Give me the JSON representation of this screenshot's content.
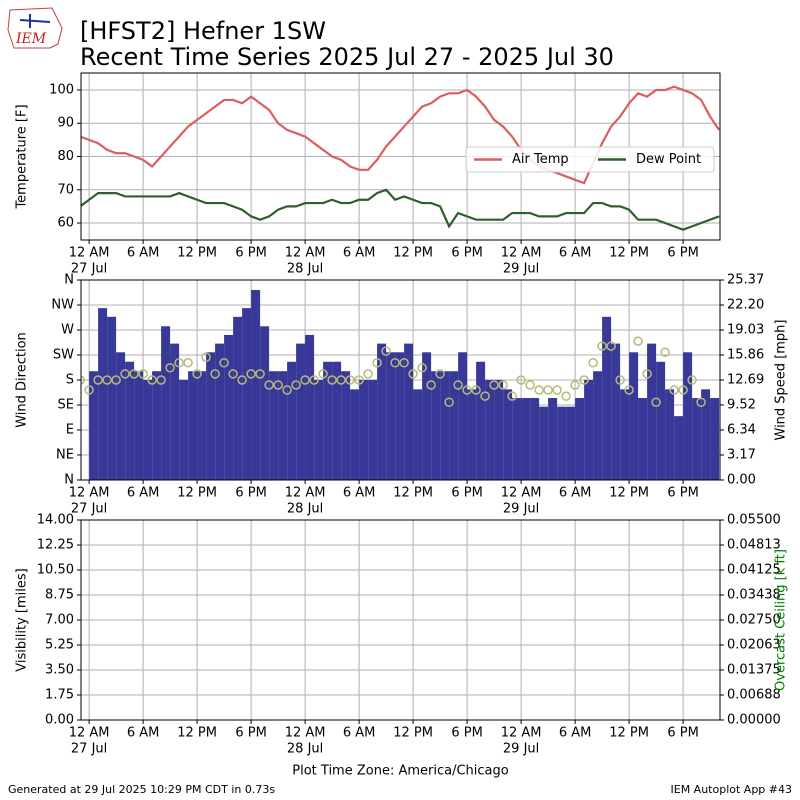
{
  "logo": "IEM",
  "title": "[HFST2] Hefner 1SW",
  "subtitle": "Recent Time Series 2025 Jul 27 - 2025 Jul 30",
  "footer_left": "Generated at 29 Jul 2025 10:29 PM CDT in 0.73s",
  "footer_right": "IEM Autoplot App #43",
  "chart_data": [
    {
      "type": "line",
      "ylabel": "Temperature [F]",
      "legend": "center right",
      "grid": true,
      "x": [
        "2025-07-26 23:00",
        "2025-07-27 00:00",
        "2025-07-27 01:00",
        "2025-07-27 02:00",
        "2025-07-27 03:00",
        "2025-07-27 04:00",
        "2025-07-27 05:00",
        "2025-07-27 06:00",
        "2025-07-27 07:00",
        "2025-07-27 08:00",
        "2025-07-27 09:00",
        "2025-07-27 10:00",
        "2025-07-27 11:00",
        "2025-07-27 12:00",
        "2025-07-27 13:00",
        "2025-07-27 14:00",
        "2025-07-27 15:00",
        "2025-07-27 16:00",
        "2025-07-27 17:00",
        "2025-07-27 18:00",
        "2025-07-27 19:00",
        "2025-07-27 20:00",
        "2025-07-27 21:00",
        "2025-07-27 22:00",
        "2025-07-27 23:00",
        "2025-07-28 00:00",
        "2025-07-28 01:00",
        "2025-07-28 02:00",
        "2025-07-28 03:00",
        "2025-07-28 04:00",
        "2025-07-28 05:00",
        "2025-07-28 06:00",
        "2025-07-28 07:00",
        "2025-07-28 08:00",
        "2025-07-28 09:00",
        "2025-07-28 10:00",
        "2025-07-28 11:00",
        "2025-07-28 12:00",
        "2025-07-28 13:00",
        "2025-07-28 14:00",
        "2025-07-28 15:00",
        "2025-07-28 16:00",
        "2025-07-28 17:00",
        "2025-07-28 18:00",
        "2025-07-28 19:00",
        "2025-07-28 20:00",
        "2025-07-28 21:00",
        "2025-07-28 22:00",
        "2025-07-28 23:00",
        "2025-07-29 00:00",
        "2025-07-29 01:00",
        "2025-07-29 02:00",
        "2025-07-29 03:00",
        "2025-07-29 04:00",
        "2025-07-29 05:00",
        "2025-07-29 06:00",
        "2025-07-29 07:00",
        "2025-07-29 08:00",
        "2025-07-29 09:00",
        "2025-07-29 10:00",
        "2025-07-29 11:00",
        "2025-07-29 12:00",
        "2025-07-29 13:00",
        "2025-07-29 14:00",
        "2025-07-29 15:00",
        "2025-07-29 16:00",
        "2025-07-29 17:00",
        "2025-07-29 18:00",
        "2025-07-29 19:00",
        "2025-07-29 20:00",
        "2025-07-29 21:00",
        "2025-07-29 22:00"
      ],
      "xlim": [
        "2025-07-26 23:06",
        "2025-07-29 22:06"
      ],
      "xticks": [
        {
          "value": "2025-07-27 00:00",
          "label": "12 AM",
          "date": "27 Jul"
        },
        {
          "value": "2025-07-27 06:00",
          "label": "6 AM"
        },
        {
          "value": "2025-07-27 12:00",
          "label": "12 PM"
        },
        {
          "value": "2025-07-27 18:00",
          "label": "6 PM"
        },
        {
          "value": "2025-07-28 00:00",
          "label": "12 AM",
          "date": "28 Jul"
        },
        {
          "value": "2025-07-28 06:00",
          "label": "6 AM"
        },
        {
          "value": "2025-07-28 12:00",
          "label": "12 PM"
        },
        {
          "value": "2025-07-28 18:00",
          "label": "6 PM"
        },
        {
          "value": "2025-07-29 00:00",
          "label": "12 AM",
          "date": "29 Jul"
        },
        {
          "value": "2025-07-29 06:00",
          "label": "6 AM"
        },
        {
          "value": "2025-07-29 12:00",
          "label": "12 PM"
        },
        {
          "value": "2025-07-29 18:00",
          "label": "6 PM"
        }
      ],
      "ylim": [
        54.9,
        105.1
      ],
      "yticks": [
        60,
        70,
        80,
        90,
        100
      ],
      "series": [
        {
          "name": "Air Temp",
          "type": "line",
          "color": "#d95f5f",
          "values": [
            86,
            85,
            84,
            82,
            81,
            81,
            80,
            79,
            77,
            80,
            83,
            86,
            89,
            91,
            93,
            95,
            97,
            97,
            96,
            98,
            96,
            94,
            90,
            88,
            87,
            86,
            84,
            82,
            80,
            79,
            77,
            76,
            76,
            79,
            83,
            86,
            89,
            92,
            95,
            96,
            98,
            99,
            99,
            100,
            98,
            95,
            91,
            89,
            86,
            82,
            79,
            77,
            76,
            75,
            74,
            73,
            72,
            78,
            84,
            89,
            92,
            96,
            99,
            98,
            100,
            100,
            101,
            100,
            99,
            97,
            92,
            88
          ]
        },
        {
          "name": "Dew Point",
          "type": "line",
          "color": "#2e5f2e",
          "values": [
            65,
            67,
            69,
            69,
            69,
            68,
            68,
            68,
            68,
            68,
            68,
            69,
            68,
            67,
            66,
            66,
            66,
            65,
            64,
            62,
            61,
            62,
            64,
            65,
            65,
            66,
            66,
            66,
            67,
            66,
            66,
            67,
            67,
            69,
            70,
            67,
            68,
            67,
            66,
            66,
            65,
            59,
            63,
            62,
            61,
            61,
            61,
            61,
            63,
            63,
            63,
            62,
            62,
            62,
            63,
            63,
            63,
            66,
            66,
            65,
            65,
            64,
            61,
            61,
            61,
            60,
            59,
            58,
            59,
            60,
            61,
            62
          ]
        }
      ]
    },
    {
      "type": "bar",
      "ylabel": "Wind Direction",
      "y2label": "Wind Speed [mph]",
      "grid": true,
      "x": [
        "2025-07-26 23:00",
        "2025-07-27 00:00",
        "2025-07-27 01:00",
        "2025-07-27 02:00",
        "2025-07-27 03:00",
        "2025-07-27 04:00",
        "2025-07-27 05:00",
        "2025-07-27 06:00",
        "2025-07-27 07:00",
        "2025-07-27 08:00",
        "2025-07-27 09:00",
        "2025-07-27 10:00",
        "2025-07-27 11:00",
        "2025-07-27 12:00",
        "2025-07-27 13:00",
        "2025-07-27 14:00",
        "2025-07-27 15:00",
        "2025-07-27 16:00",
        "2025-07-27 17:00",
        "2025-07-27 18:00",
        "2025-07-27 19:00",
        "2025-07-27 20:00",
        "2025-07-27 21:00",
        "2025-07-27 22:00",
        "2025-07-27 23:00",
        "2025-07-28 00:00",
        "2025-07-28 01:00",
        "2025-07-28 02:00",
        "2025-07-28 03:00",
        "2025-07-28 04:00",
        "2025-07-28 05:00",
        "2025-07-28 06:00",
        "2025-07-28 07:00",
        "2025-07-28 08:00",
        "2025-07-28 09:00",
        "2025-07-28 10:00",
        "2025-07-28 11:00",
        "2025-07-28 12:00",
        "2025-07-28 13:00",
        "2025-07-28 14:00",
        "2025-07-28 15:00",
        "2025-07-28 16:00",
        "2025-07-28 17:00",
        "2025-07-28 18:00",
        "2025-07-28 19:00",
        "2025-07-28 20:00",
        "2025-07-28 21:00",
        "2025-07-28 22:00",
        "2025-07-28 23:00",
        "2025-07-29 00:00",
        "2025-07-29 01:00",
        "2025-07-29 02:00",
        "2025-07-29 03:00",
        "2025-07-29 04:00",
        "2025-07-29 05:00",
        "2025-07-29 06:00",
        "2025-07-29 07:00",
        "2025-07-29 08:00",
        "2025-07-29 09:00",
        "2025-07-29 10:00",
        "2025-07-29 11:00",
        "2025-07-29 12:00",
        "2025-07-29 13:00",
        "2025-07-29 14:00",
        "2025-07-29 15:00",
        "2025-07-29 16:00",
        "2025-07-29 17:00",
        "2025-07-29 18:00",
        "2025-07-29 19:00",
        "2025-07-29 20:00",
        "2025-07-29 21:00",
        "2025-07-29 22:00"
      ],
      "xlim": [
        "2025-07-26 23:06",
        "2025-07-29 22:06"
      ],
      "xticks": [
        {
          "value": "2025-07-27 00:00",
          "label": "12 AM",
          "date": "27 Jul"
        },
        {
          "value": "2025-07-27 06:00",
          "label": "6 AM"
        },
        {
          "value": "2025-07-27 12:00",
          "label": "12 PM"
        },
        {
          "value": "2025-07-27 18:00",
          "label": "6 PM"
        },
        {
          "value": "2025-07-28 00:00",
          "label": "12 AM",
          "date": "28 Jul"
        },
        {
          "value": "2025-07-28 06:00",
          "label": "6 AM"
        },
        {
          "value": "2025-07-28 12:00",
          "label": "12 PM"
        },
        {
          "value": "2025-07-28 18:00",
          "label": "6 PM"
        },
        {
          "value": "2025-07-29 00:00",
          "label": "12 AM",
          "date": "29 Jul"
        },
        {
          "value": "2025-07-29 06:00",
          "label": "6 AM"
        },
        {
          "value": "2025-07-29 12:00",
          "label": "12 PM"
        },
        {
          "value": "2025-07-29 18:00",
          "label": "6 PM"
        }
      ],
      "ylim": [
        0,
        360
      ],
      "yticks": [
        {
          "value": 0,
          "label": "N"
        },
        {
          "value": 45,
          "label": "NE"
        },
        {
          "value": 90,
          "label": "E"
        },
        {
          "value": 135,
          "label": "SE"
        },
        {
          "value": 180,
          "label": "S"
        },
        {
          "value": 225,
          "label": "SW"
        },
        {
          "value": 270,
          "label": "W"
        },
        {
          "value": 315,
          "label": "NW"
        },
        {
          "value": 360,
          "label": "N"
        }
      ],
      "y2lim": [
        0,
        25.37
      ],
      "y2ticks": [
        {
          "value": 0,
          "label": "0.00"
        },
        {
          "value": 3.17,
          "label": "3.17"
        },
        {
          "value": 6.34,
          "label": "6.34"
        },
        {
          "value": 9.52,
          "label": "9.52"
        },
        {
          "value": 12.69,
          "label": "12.69"
        },
        {
          "value": 15.86,
          "label": "15.86"
        },
        {
          "value": 19.03,
          "label": "19.03"
        },
        {
          "value": 22.2,
          "label": "22.20"
        },
        {
          "value": 25.37,
          "label": "25.37"
        }
      ],
      "series": [
        {
          "name": "Wind Speed",
          "type": "bar",
          "axis": "y2",
          "color": "#383898",
          "values": [
            null,
            13.8,
            21.8,
            20.7,
            16.2,
            15.0,
            13.8,
            12.7,
            13.8,
            19.5,
            17.3,
            12.7,
            13.8,
            13.8,
            16.2,
            17.3,
            18.4,
            20.7,
            21.8,
            24.1,
            19.5,
            13.8,
            13.8,
            15.0,
            17.3,
            18.4,
            12.7,
            15.0,
            15.0,
            13.8,
            11.5,
            12.7,
            12.7,
            17.3,
            16.2,
            16.2,
            17.3,
            11.5,
            16.2,
            13.8,
            13.8,
            13.8,
            16.2,
            11.5,
            15.0,
            12.7,
            12.7,
            11.5,
            10.4,
            10.4,
            10.4,
            9.3,
            10.4,
            9.3,
            9.3,
            10.4,
            12.7,
            13.8,
            20.7,
            17.3,
            11.5,
            16.2,
            10.4,
            17.3,
            15.0,
            11.5,
            8.1,
            16.2,
            10.4,
            11.5,
            10.4,
            null
          ]
        },
        {
          "name": "Wind Direction",
          "type": "scatter",
          "color": "#b8b87a",
          "values": [
            180,
            162,
            180,
            180,
            180,
            191,
            191,
            191,
            180,
            180,
            202,
            211,
            211,
            191,
            221,
            191,
            211,
            191,
            180,
            191,
            191,
            171,
            171,
            162,
            171,
            180,
            180,
            191,
            180,
            180,
            180,
            180,
            191,
            211,
            232,
            211,
            211,
            191,
            202,
            171,
            191,
            140,
            171,
            162,
            162,
            151,
            171,
            171,
            151,
            180,
            171,
            162,
            162,
            162,
            151,
            171,
            180,
            211,
            241,
            241,
            180,
            162,
            250,
            191,
            140,
            230,
            162,
            162,
            180,
            140,
            null,
            null
          ]
        }
      ]
    },
    {
      "type": "line",
      "ylabel": "Visibility [miles]",
      "y2label": "Overcast Ceiling [k ft]",
      "y2label_color": "#008000",
      "xlabel": "Plot Time Zone: America/Chicago",
      "grid": true,
      "xlim": [
        "2025-07-26 23:06",
        "2025-07-29 22:06"
      ],
      "xticks": [
        {
          "value": "2025-07-27 00:00",
          "label": "12 AM",
          "date": "27 Jul"
        },
        {
          "value": "2025-07-27 06:00",
          "label": "6 AM"
        },
        {
          "value": "2025-07-27 12:00",
          "label": "12 PM"
        },
        {
          "value": "2025-07-27 18:00",
          "label": "6 PM"
        },
        {
          "value": "2025-07-28 00:00",
          "label": "12 AM",
          "date": "28 Jul"
        },
        {
          "value": "2025-07-28 06:00",
          "label": "6 AM"
        },
        {
          "value": "2025-07-28 12:00",
          "label": "12 PM"
        },
        {
          "value": "2025-07-28 18:00",
          "label": "6 PM"
        },
        {
          "value": "2025-07-29 00:00",
          "label": "12 AM",
          "date": "29 Jul"
        },
        {
          "value": "2025-07-29 06:00",
          "label": "6 AM"
        },
        {
          "value": "2025-07-29 12:00",
          "label": "12 PM"
        },
        {
          "value": "2025-07-29 18:00",
          "label": "6 PM"
        }
      ],
      "ylim": [
        0,
        14
      ],
      "yticks": [
        {
          "value": 0,
          "label": "0.00"
        },
        {
          "value": 1.75,
          "label": "1.75"
        },
        {
          "value": 3.5,
          "label": "3.50"
        },
        {
          "value": 5.25,
          "label": "5.25"
        },
        {
          "value": 7,
          "label": "7.00"
        },
        {
          "value": 8.75,
          "label": "8.75"
        },
        {
          "value": 10.5,
          "label": "10.50"
        },
        {
          "value": 12.25,
          "label": "12.25"
        },
        {
          "value": 14,
          "label": "14.00"
        }
      ],
      "y2lim": [
        0,
        0.055
      ],
      "y2ticks": [
        {
          "value": 0,
          "label": "0.00000"
        },
        {
          "value": 0.006875,
          "label": "0.00688"
        },
        {
          "value": 0.01375,
          "label": "0.01375"
        },
        {
          "value": 0.020625,
          "label": "0.02063"
        },
        {
          "value": 0.0275,
          "label": "0.02750"
        },
        {
          "value": 0.034375,
          "label": "0.03438"
        },
        {
          "value": 0.04125,
          "label": "0.04125"
        },
        {
          "value": 0.048125,
          "label": "0.04813"
        },
        {
          "value": 0.055,
          "label": "0.05500"
        }
      ]
    }
  ]
}
